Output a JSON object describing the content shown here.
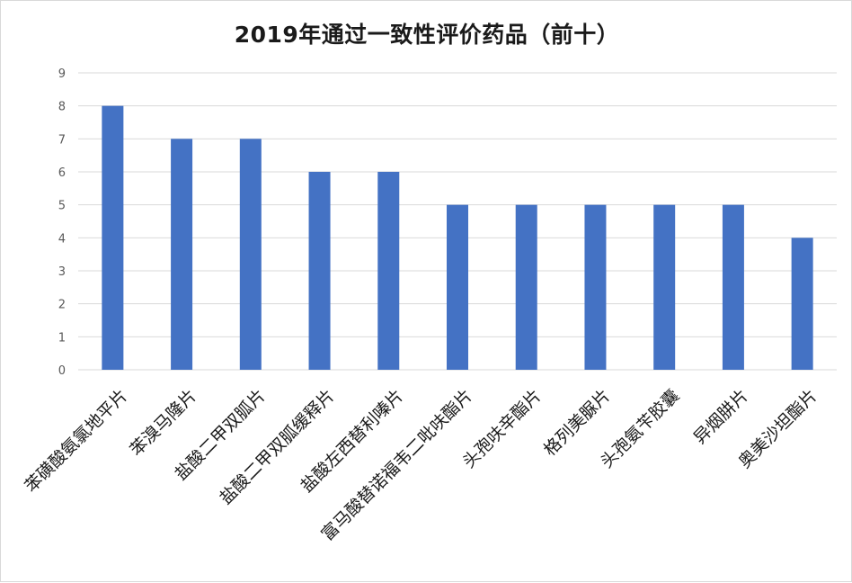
{
  "chart_data": {
    "type": "bar",
    "title": "2019年通过一致性评价药品（前十）",
    "xlabel": "",
    "ylabel": "",
    "categories": [
      "苯磺酸氨氯地平片",
      "苯溴马隆片",
      "盐酸二甲双胍片",
      "盐酸二甲双胍缓释片",
      "盐酸左西替利嗪片",
      "富马酸替诺福韦二吡呋酯片",
      "头孢呋辛酯片",
      "格列美脲片",
      "头孢氨苄胶囊",
      "异烟肼片",
      "奥美沙坦酯片"
    ],
    "values": [
      8,
      7,
      7,
      6,
      6,
      5,
      5,
      5,
      5,
      5,
      4
    ],
    "ylim": [
      0,
      9
    ],
    "yticks": [
      0,
      1,
      2,
      3,
      4,
      5,
      6,
      7,
      8,
      9
    ],
    "grid": true,
    "legend": "none",
    "colors": {
      "bar": "#4472c4",
      "grid": "#d9d9d9",
      "tick_text": "#595959",
      "label_text": "#1a1a1a"
    }
  }
}
